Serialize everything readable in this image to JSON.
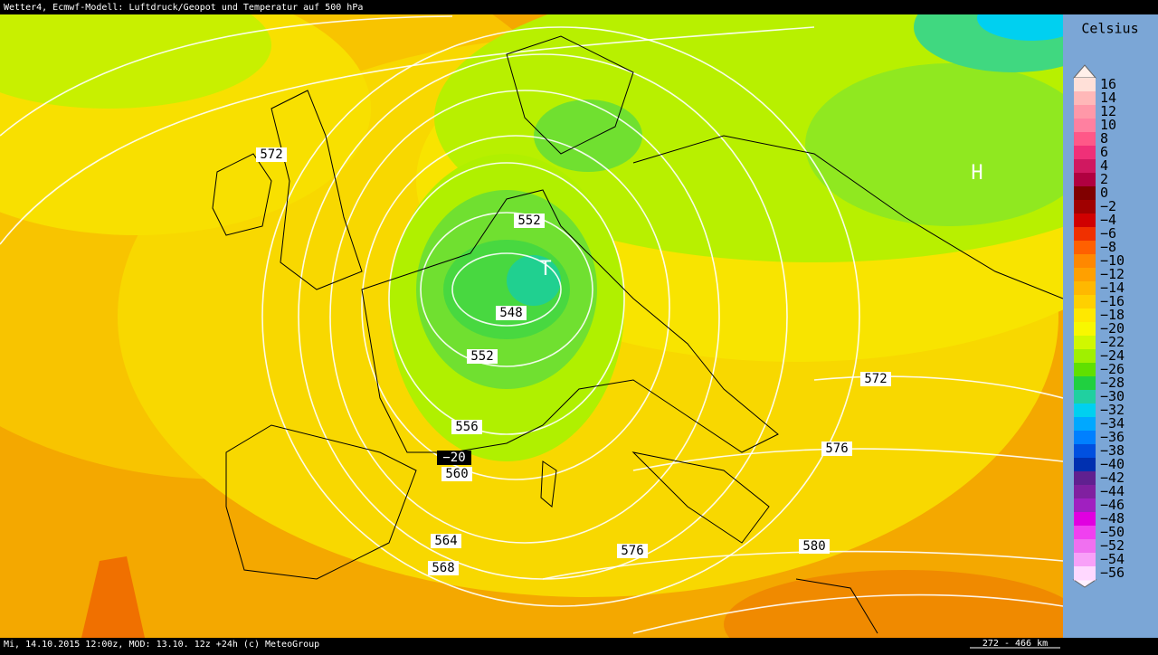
{
  "header": {
    "title": "Wetter4, Ecmwf-Modell: Luftdruck/Geopot und Temperatur auf 500 hPa"
  },
  "footer": {
    "info": "Mi, 14.10.2015 12:00z, MOD: 13.10. 12z +24h (c) MeteoGroup",
    "scale": "272 - 466 km"
  },
  "legend": {
    "title": "Celsius",
    "items": [
      {
        "label": "16",
        "color": "#ffe0d8"
      },
      {
        "label": "14",
        "color": "#ffb8b8"
      },
      {
        "label": "12",
        "color": "#ff98a8"
      },
      {
        "label": "10",
        "color": "#ff80a0"
      },
      {
        "label": "8",
        "color": "#ff5888"
      },
      {
        "label": "6",
        "color": "#f03078"
      },
      {
        "label": "4",
        "color": "#d01860"
      },
      {
        "label": "2",
        "color": "#b00040"
      },
      {
        "label": "0",
        "color": "#800000"
      },
      {
        "label": "−2",
        "color": "#a00000"
      },
      {
        "label": "−4",
        "color": "#d00000"
      },
      {
        "label": "−6",
        "color": "#f03000"
      },
      {
        "label": "−8",
        "color": "#ff6000"
      },
      {
        "label": "−10",
        "color": "#ff8800"
      },
      {
        "label": "−12",
        "color": "#ffa000"
      },
      {
        "label": "−14",
        "color": "#ffb800"
      },
      {
        "label": "−16",
        "color": "#ffd000"
      },
      {
        "label": "−18",
        "color": "#ffe800"
      },
      {
        "label": "−20",
        "color": "#f8f800"
      },
      {
        "label": "−22",
        "color": "#d0f800"
      },
      {
        "label": "−24",
        "color": "#a0f000"
      },
      {
        "label": "−26",
        "color": "#60e000"
      },
      {
        "label": "−28",
        "color": "#20d040"
      },
      {
        "label": "−30",
        "color": "#20d0a0"
      },
      {
        "label": "−32",
        "color": "#00d0f0"
      },
      {
        "label": "−34",
        "color": "#00a8ff"
      },
      {
        "label": "−36",
        "color": "#0080ff"
      },
      {
        "label": "−38",
        "color": "#0050e0"
      },
      {
        "label": "−40",
        "color": "#0030b0"
      },
      {
        "label": "−42",
        "color": "#602090"
      },
      {
        "label": "−44",
        "color": "#8020a0"
      },
      {
        "label": "−46",
        "color": "#a020c0"
      },
      {
        "label": "−48",
        "color": "#e000e0"
      },
      {
        "label": "−50",
        "color": "#f040f0"
      },
      {
        "label": "−52",
        "color": "#f070f0"
      },
      {
        "label": "−54",
        "color": "#f8a0f8"
      },
      {
        "label": "−56",
        "color": "#ffd8ff"
      }
    ]
  },
  "map": {
    "contour_labels": [
      "572",
      "552",
      "548",
      "552",
      "556",
      "560",
      "564",
      "568",
      "576",
      "576",
      "580",
      "572"
    ],
    "temperature_label": "−20",
    "low": "T",
    "high": "H"
  }
}
